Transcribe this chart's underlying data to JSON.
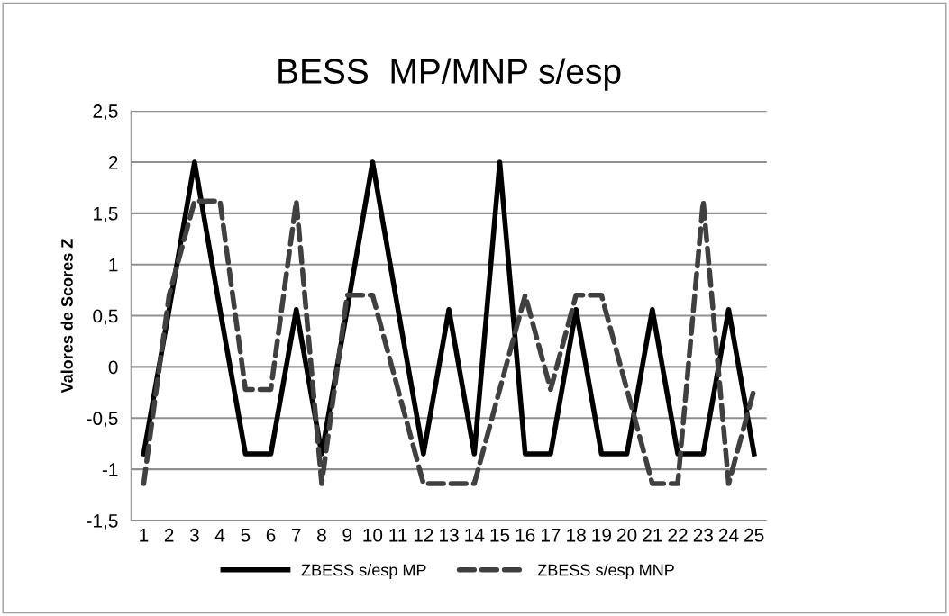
{
  "chart_data": {
    "type": "line",
    "title": "BESS  MP/MNP s/esp",
    "ylabel": "Valores de Scores Z",
    "categories": [
      "1",
      "2",
      "3",
      "4",
      "5",
      "6",
      "7",
      "8",
      "9",
      "10",
      "11",
      "12",
      "13",
      "14",
      "15",
      "16",
      "17",
      "18",
      "19",
      "20",
      "21",
      "22",
      "23",
      "24",
      "25"
    ],
    "series": [
      {
        "name": "ZBESS s/esp MP",
        "color": "#000000",
        "line_style": "solid",
        "values": [
          -0.85,
          0.56,
          2,
          0.56,
          -0.85,
          -0.85,
          0.56,
          -0.85,
          0.56,
          2,
          0.56,
          -0.85,
          0.56,
          -0.85,
          2,
          -0.85,
          -0.85,
          0.56,
          -0.85,
          -0.85,
          0.56,
          -0.85,
          -0.85,
          0.56,
          -0.85
        ]
      },
      {
        "name": "ZBESS s/esp MNP",
        "color": "#404040",
        "line_style": "dashed",
        "values": [
          -1.14,
          0.7,
          1.62,
          1.62,
          -0.22,
          -0.22,
          1.62,
          -1.14,
          0.7,
          0.7,
          -0.22,
          -1.14,
          -1.14,
          -1.14,
          -0.22,
          0.7,
          -0.22,
          0.7,
          0.7,
          -0.22,
          -1.14,
          -1.14,
          1.62,
          -1.14,
          -0.22
        ]
      }
    ],
    "ylim": [
      -1.5,
      2.5
    ],
    "yticks": [
      {
        "value": -1.5,
        "label": "-1,5"
      },
      {
        "value": -1,
        "label": "-1"
      },
      {
        "value": -0.5,
        "label": "-0,5"
      },
      {
        "value": 0,
        "label": "0"
      },
      {
        "value": 0.5,
        "label": "0,5"
      },
      {
        "value": 1,
        "label": "1"
      },
      {
        "value": 1.5,
        "label": "1,5"
      },
      {
        "value": 2,
        "label": "2"
      },
      {
        "value": 2.5,
        "label": "2,5"
      }
    ],
    "grid": "y",
    "legend": "bottom",
    "marker": "none"
  }
}
